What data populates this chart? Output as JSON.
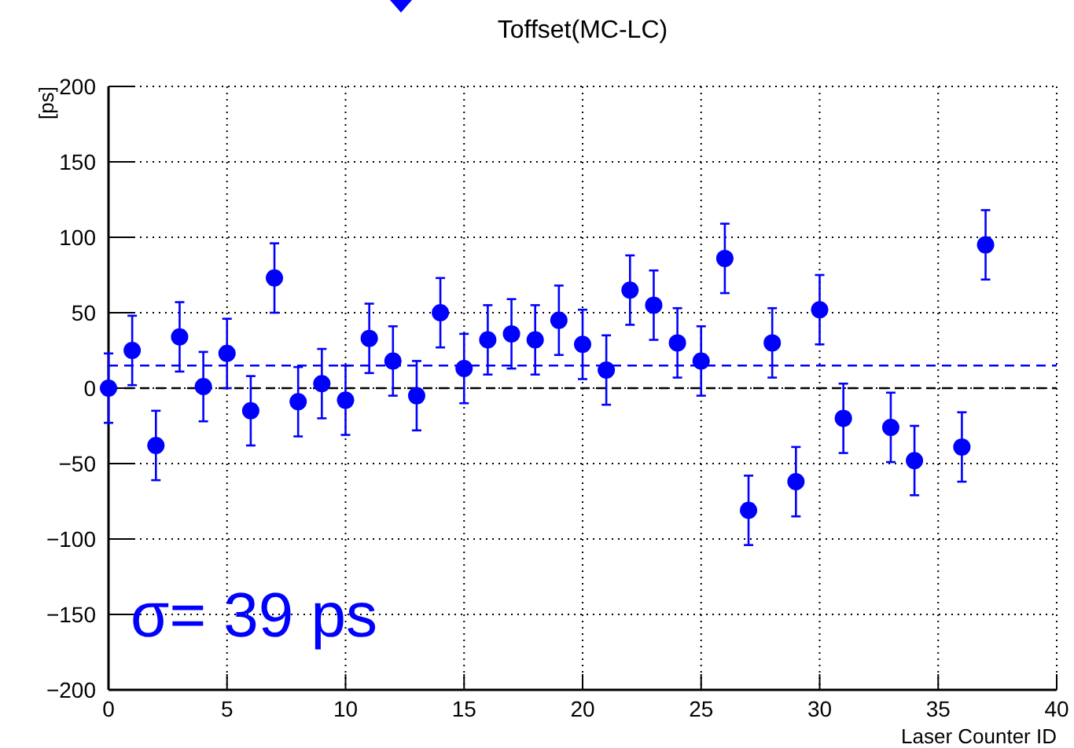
{
  "chart_data": {
    "type": "scatter",
    "title": "Toffset(MC-LC)",
    "xlabel": "Laser Counter ID",
    "ylabel": "[ps]",
    "x": [
      0,
      1,
      2,
      3,
      4,
      5,
      6,
      7,
      8,
      9,
      10,
      11,
      12,
      13,
      14,
      15,
      16,
      17,
      18,
      19,
      20,
      21,
      22,
      23,
      24,
      25,
      26,
      27,
      28,
      29,
      30,
      31,
      33,
      34,
      36,
      37
    ],
    "series": [
      {
        "color": "#0000ff",
        "values": [
          0,
          25,
          -38,
          34,
          1,
          23,
          -15,
          73,
          -9,
          3,
          -8,
          33,
          18,
          -5,
          50,
          13,
          32,
          36,
          32,
          45,
          29,
          12,
          65,
          55,
          30,
          18,
          86,
          -81,
          30,
          -62,
          52,
          -20,
          -26,
          -48,
          -39,
          95
        ],
        "errors": [
          23,
          23,
          23,
          23,
          23,
          23,
          23,
          23,
          23,
          23,
          23,
          23,
          23,
          23,
          23,
          23,
          23,
          23,
          23,
          23,
          23,
          23,
          23,
          23,
          23,
          23,
          23,
          23,
          23,
          23,
          23,
          23,
          23,
          23,
          23,
          23
        ]
      }
    ],
    "xlim": [
      0,
      40
    ],
    "xticks": [
      0,
      5,
      10,
      15,
      20,
      25,
      30,
      35,
      40
    ],
    "ylim": [
      -200,
      200
    ],
    "yticks": [
      -200,
      -150,
      -100,
      -50,
      0,
      50,
      100,
      150,
      200
    ],
    "grid": true,
    "marker": "circle",
    "ref_lines": [
      {
        "axis": "y",
        "value": 0,
        "color": "#000000",
        "line_style": "dashed"
      },
      {
        "axis": "y",
        "value": 15,
        "color": "#0000ff",
        "line_style": "dashed"
      }
    ],
    "annotations": [
      "σ= 39 ps"
    ]
  }
}
